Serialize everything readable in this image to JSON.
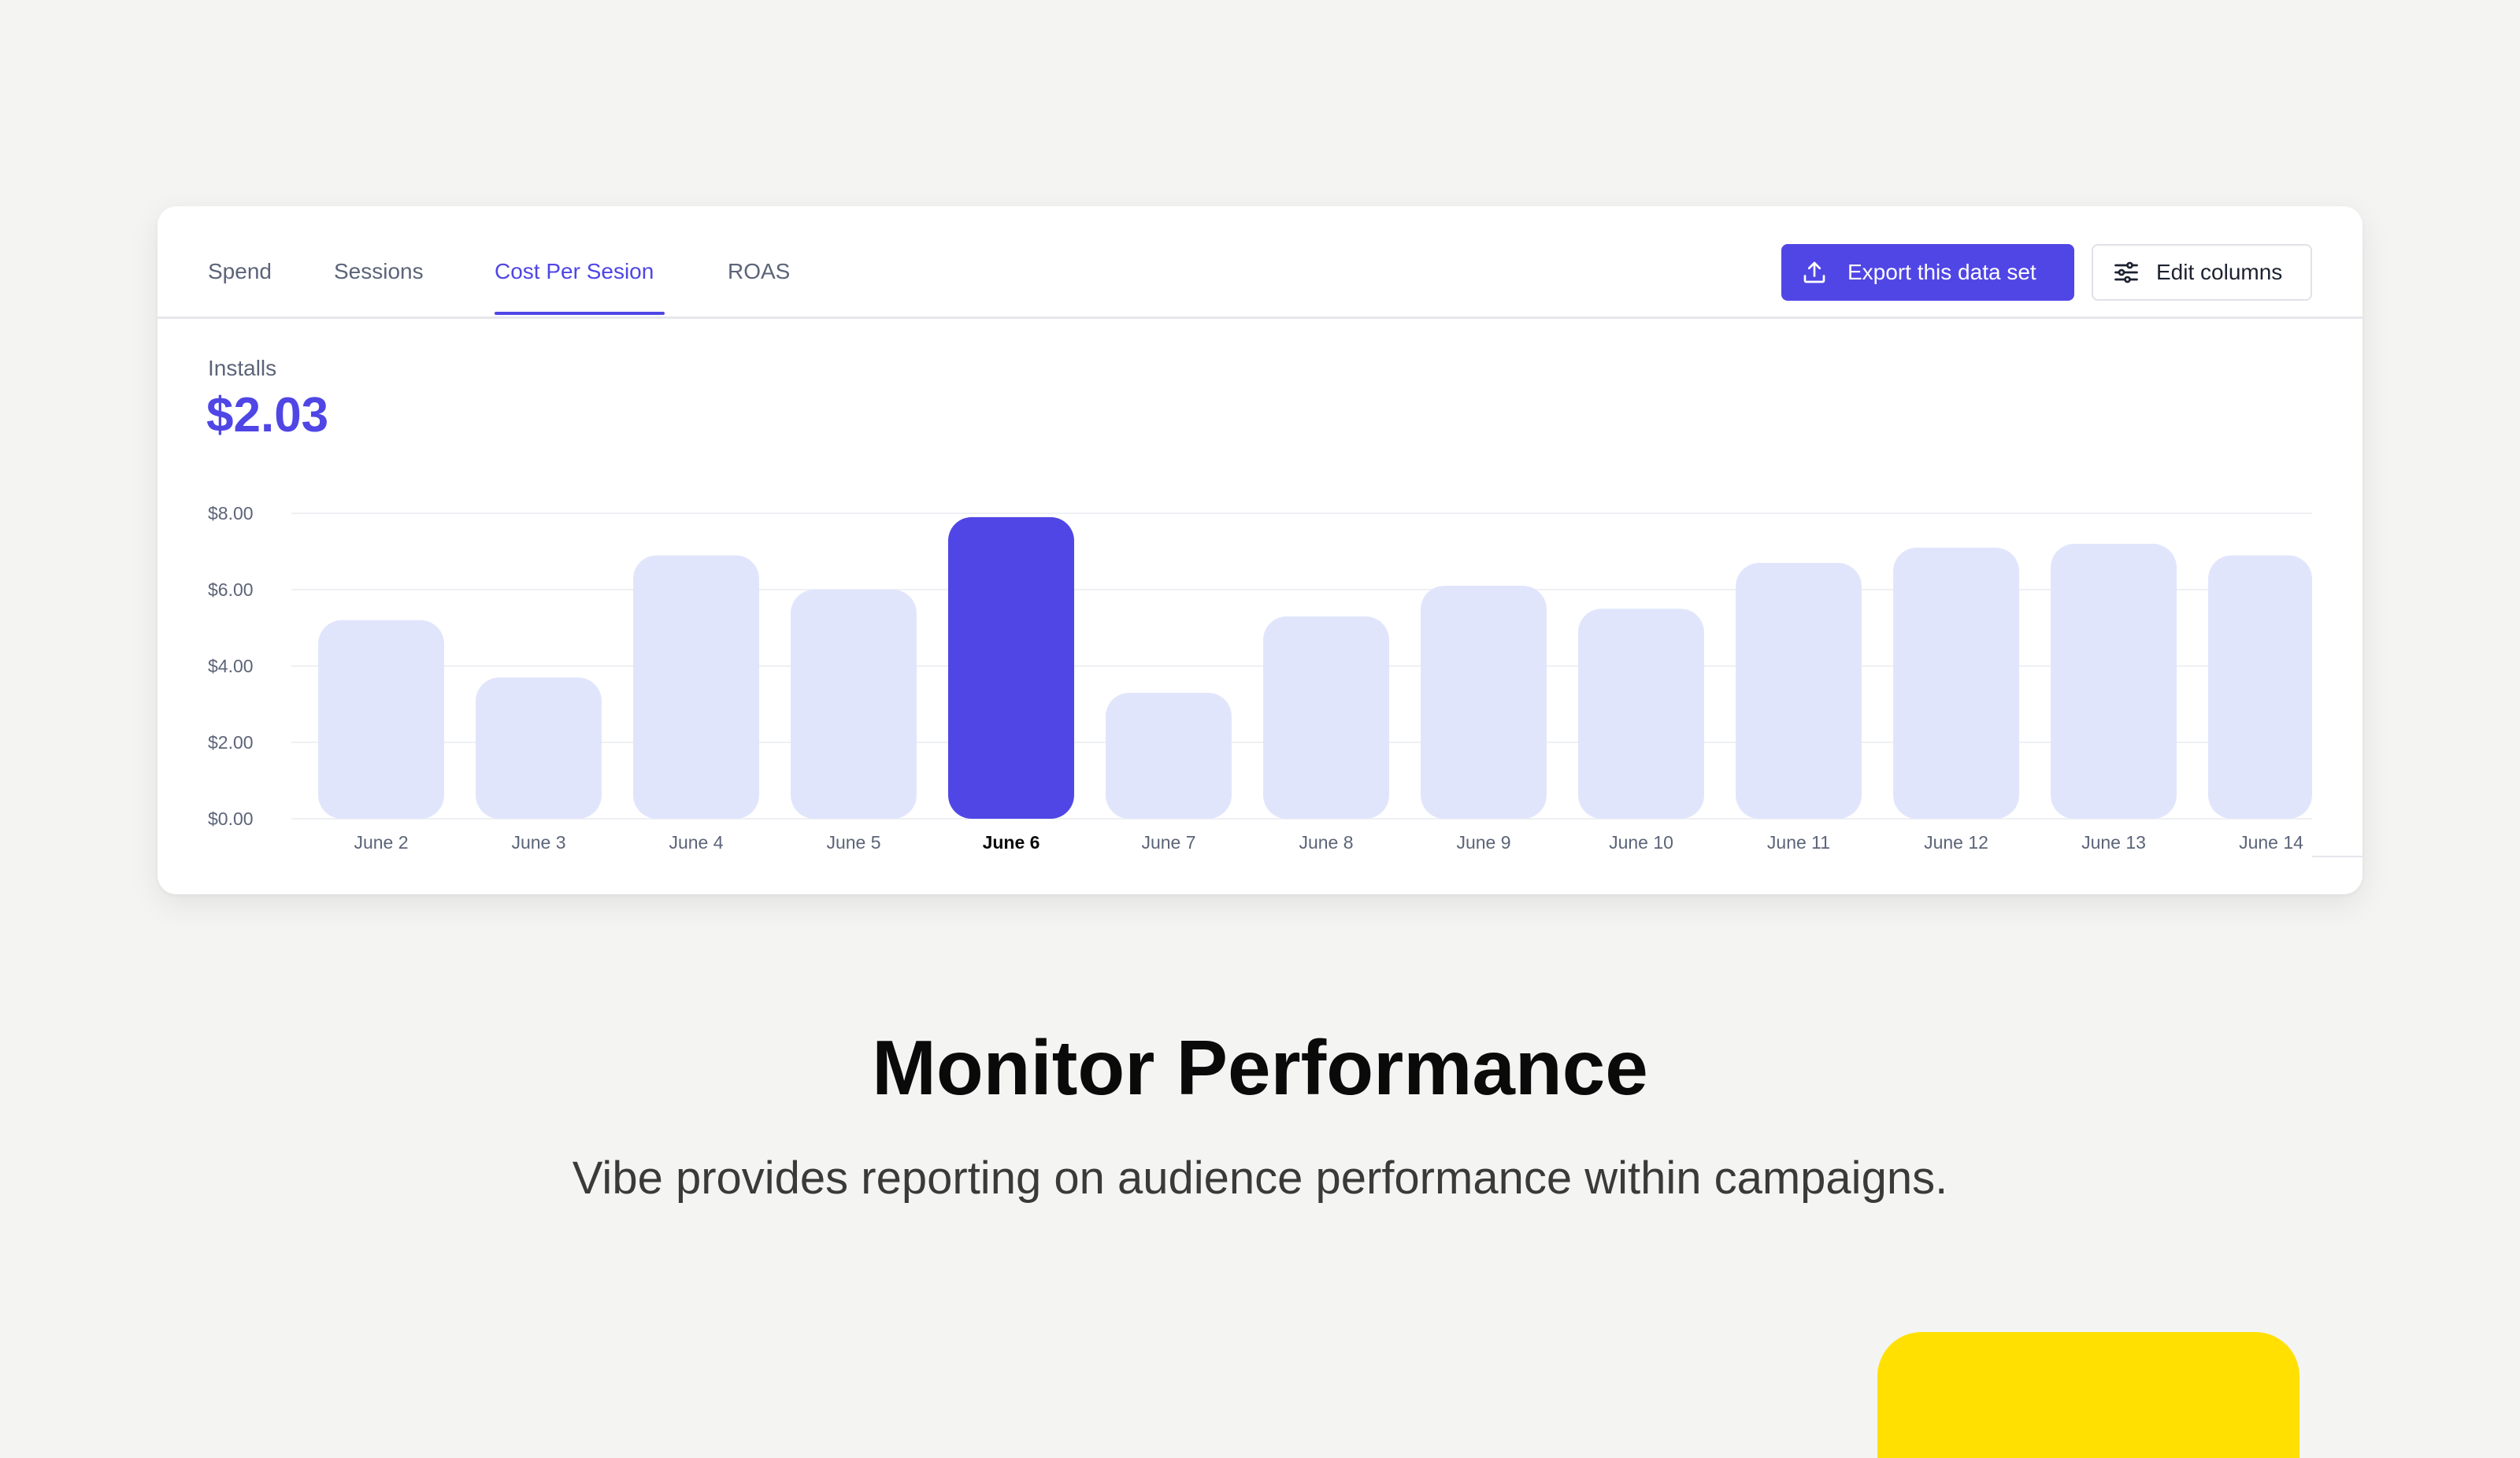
{
  "tabs": [
    {
      "label": "Spend",
      "active": false
    },
    {
      "label": "Sessions",
      "active": false
    },
    {
      "label": "Cost Per Sesion",
      "active": true
    },
    {
      "label": "ROAS",
      "active": false
    }
  ],
  "toolbar": {
    "export_label": "Export this data set",
    "export_icon": "upload-icon",
    "edit_label": "Edit columns",
    "edit_icon": "sliders-icon"
  },
  "metric": {
    "label": "Installs",
    "value": "$2.03"
  },
  "colors": {
    "accent": "#4f46e5",
    "bar_default": "#e1e5fc",
    "bar_highlight": "#5046e5",
    "highlight_block": "#ffe000"
  },
  "chart_data": {
    "type": "bar",
    "categories": [
      "June 2",
      "June 3",
      "June 4",
      "June 5",
      "June 6",
      "June 7",
      "June 8",
      "June 9",
      "June 10",
      "June 11",
      "June 12",
      "June 13",
      "June 14"
    ],
    "values": [
      5.2,
      3.7,
      6.9,
      6.0,
      7.9,
      3.3,
      5.3,
      6.1,
      5.5,
      6.7,
      7.1,
      7.2,
      6.9
    ],
    "highlighted": "June 6",
    "yticks": [
      "$0.00",
      "$2.00",
      "$4.00",
      "$6.00",
      "$8.00"
    ],
    "ytick_values": [
      0,
      2,
      4,
      6,
      8
    ],
    "ylim": [
      0,
      8
    ],
    "grid": true
  },
  "hero": {
    "title": "Monitor Performance",
    "subtitle": "Vibe provides reporting on audience performance within campaigns."
  }
}
